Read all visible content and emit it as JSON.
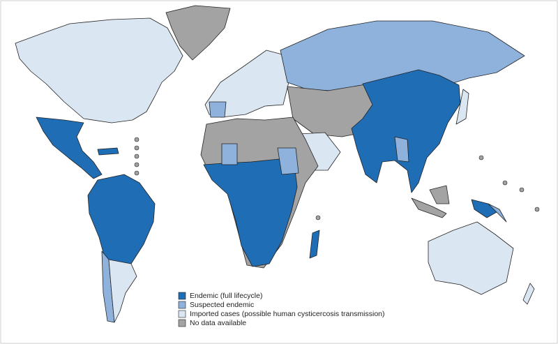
{
  "legend": [
    {
      "label": "Endemic (full lifecycle)",
      "color": "#1f6db5"
    },
    {
      "label": "Suspected endemic",
      "color": "#8fb2dd"
    },
    {
      "label": "Imported cases (possible human cysticercosis transmission)",
      "color": "#dbe6f3"
    },
    {
      "label": "No data available",
      "color": "#a3a3a3"
    }
  ]
}
